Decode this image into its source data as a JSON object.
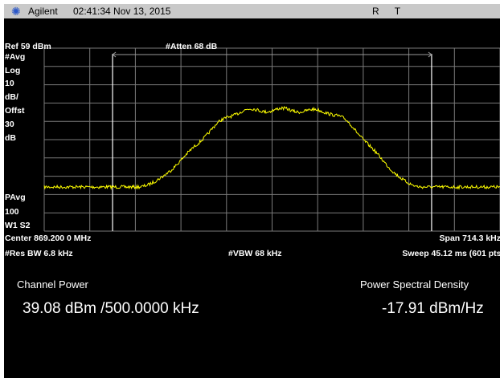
{
  "titlebar": {
    "brand": "Agilent",
    "timestamp": "02:41:34  Nov 13, 2015",
    "flags": [
      "R",
      "T"
    ]
  },
  "settings": {
    "ref": "Ref 59 dBm",
    "atten": "#Atten 68 dB",
    "left_labels": [
      "#Avg",
      "Log",
      "10",
      "dB/",
      "Offst",
      "30",
      "dB"
    ],
    "pavg": [
      "PAvg",
      "100",
      "W1  S2"
    ],
    "center": "Center 869.200 0 MHz",
    "span": "Span 714.3 kHz",
    "res_bw": "#Res BW 6.8 kHz",
    "vbw": "#VBW 68 kHz",
    "sweep": "Sweep 45.12 ms (601 pts)"
  },
  "results": {
    "channel_power_label": "Channel Power",
    "channel_power_value": "39.08 dBm /500.0000 kHz",
    "psd_label": "Power Spectral Density",
    "psd_value": "-17.91 dBm/Hz"
  },
  "colors": {
    "trace": "#ffff00",
    "grid": "#7a7a7a",
    "background": "#000000",
    "titlebar": "#c9c9c9",
    "logo": "#2b57c8"
  },
  "icons": {
    "logo": "agilent-spark-icon"
  }
}
